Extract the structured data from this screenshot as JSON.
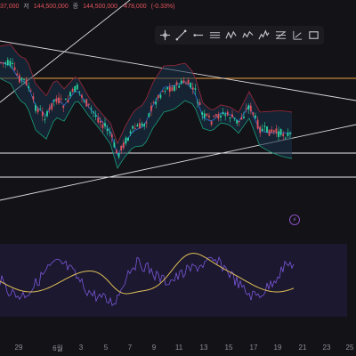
{
  "header": {
    "open_fragment": "37,000",
    "low_label": "저",
    "low_value": "144,500,000",
    "close_label": "종",
    "close_value": "144,500,000",
    "change": "-478,000",
    "change_pct": "(-0.33%)"
  },
  "toolbar": {
    "tools": [
      {
        "icon": "crosshair-icon"
      },
      {
        "icon": "trend-line-icon"
      },
      {
        "icon": "horizontal-ray-icon"
      },
      {
        "icon": "parallel-channel-icon"
      },
      {
        "icon": "zigzag-pattern-icon"
      },
      {
        "icon": "wave-pattern-icon"
      },
      {
        "icon": "elliott-wave-icon"
      },
      {
        "icon": "fib-retracement-icon"
      },
      {
        "icon": "measure-icon"
      },
      {
        "icon": "rectangle-icon"
      }
    ]
  },
  "x_axis": {
    "labels": [
      "29",
      "6월",
      "3",
      "5",
      "7",
      "9",
      "11",
      "13",
      "15",
      "17",
      "19",
      "21",
      "23",
      "25"
    ]
  },
  "colors": {
    "background": "#131317",
    "bull": "#2bd59f",
    "bear": "#e0525b",
    "bollinger_upper": "#a0283a",
    "bollinger_lower": "#1a9c78",
    "bollinger_basis": "#2f6fd6",
    "horizontal_orange": "#f2a23c",
    "horizontal_white": "#e9e9ee",
    "oscillator_line": "#7b57d9",
    "oscillator_signal": "#e3c156",
    "oscillator_band": "#1e1a35"
  },
  "alert": {
    "icon": "alert-icon",
    "symbol": "⚡"
  }
}
